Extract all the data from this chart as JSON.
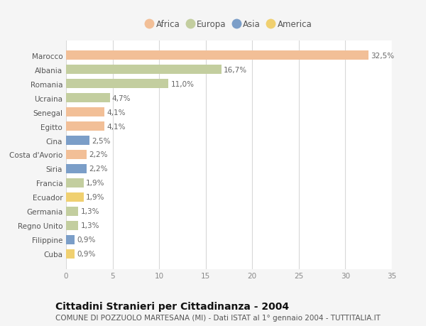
{
  "countries": [
    "Marocco",
    "Albania",
    "Romania",
    "Ucraina",
    "Senegal",
    "Egitto",
    "Cina",
    "Costa d'Avorio",
    "Siria",
    "Francia",
    "Ecuador",
    "Germania",
    "Regno Unito",
    "Filippine",
    "Cuba"
  ],
  "values": [
    32.5,
    16.7,
    11.0,
    4.7,
    4.1,
    4.1,
    2.5,
    2.2,
    2.2,
    1.9,
    1.9,
    1.3,
    1.3,
    0.9,
    0.9
  ],
  "labels": [
    "32,5%",
    "16,7%",
    "11,0%",
    "4,7%",
    "4,1%",
    "4,1%",
    "2,5%",
    "2,2%",
    "2,2%",
    "1,9%",
    "1,9%",
    "1,3%",
    "1,3%",
    "0,9%",
    "0,9%"
  ],
  "continents": [
    "Africa",
    "Europa",
    "Europa",
    "Europa",
    "Africa",
    "Africa",
    "Asia",
    "Africa",
    "Asia",
    "Europa",
    "America",
    "Europa",
    "Europa",
    "Asia",
    "America"
  ],
  "colors": {
    "Africa": "#F2BF97",
    "Europa": "#C3CE9F",
    "Asia": "#7B9EC8",
    "America": "#F0D070"
  },
  "legend_order": [
    "Africa",
    "Europa",
    "Asia",
    "America"
  ],
  "title": "Cittadini Stranieri per Cittadinanza - 2004",
  "subtitle": "COMUNE DI POZZUOLO MARTESANA (MI) - Dati ISTAT al 1° gennaio 2004 - TUTTITALIA.IT",
  "xlim": [
    0,
    35
  ],
  "xticks": [
    0,
    5,
    10,
    15,
    20,
    25,
    30,
    35
  ],
  "bg_color": "#f5f5f5",
  "plot_bg_color": "#ffffff",
  "grid_color": "#d8d8d8",
  "title_fontsize": 10,
  "subtitle_fontsize": 7.5,
  "label_fontsize": 7.5,
  "tick_fontsize": 7.5,
  "legend_fontsize": 8.5
}
